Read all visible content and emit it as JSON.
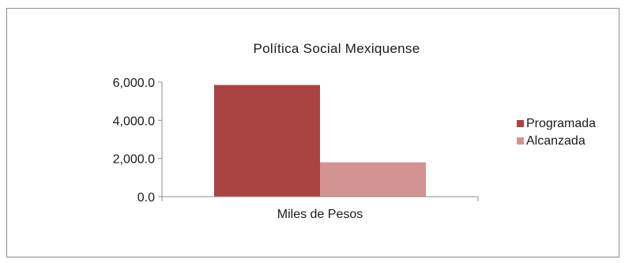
{
  "chart_data": {
    "type": "bar",
    "title": "Política Social Mexiquense",
    "categories": [
      "Miles de Pesos"
    ],
    "series": [
      {
        "name": "Programada",
        "values": [
          5850.0
        ],
        "color": "#a94442"
      },
      {
        "name": "Alcanzada",
        "values": [
          1800.0
        ],
        "color": "#d49393"
      }
    ],
    "ylim": [
      0,
      6000
    ],
    "yticks": [
      "0.0",
      "2,000.0",
      "4,000.0",
      "6,000.0"
    ],
    "ytick_values": [
      0,
      2000,
      4000,
      6000
    ],
    "grid": false,
    "legend": "right",
    "xlabel": "",
    "ylabel": ""
  }
}
